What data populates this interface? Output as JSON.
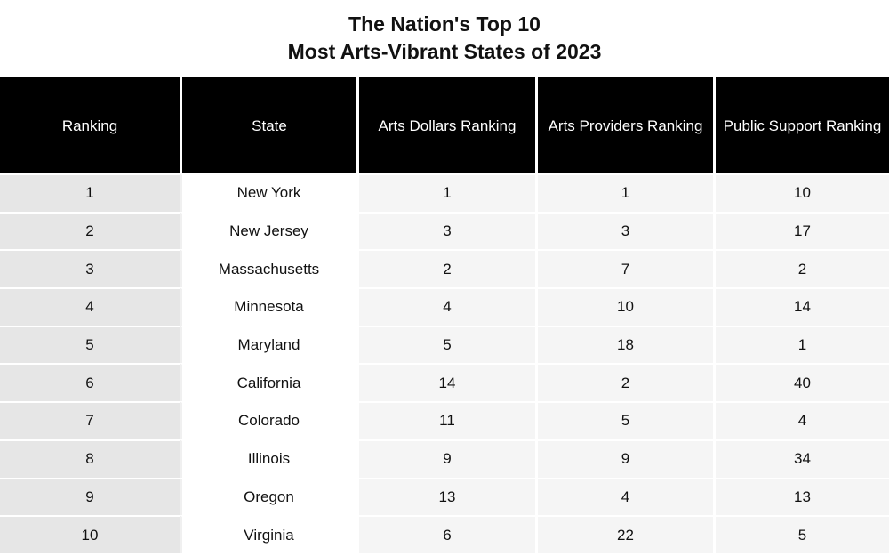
{
  "chart_data": {
    "type": "table",
    "title_line1": "The Nation's Top 10",
    "title_line2": "Most Arts-Vibrant States of 2023",
    "columns": [
      "Ranking",
      "State",
      "Arts Dollars Ranking",
      "Arts Providers Ranking",
      "Public Support Ranking"
    ],
    "rows": [
      [
        "1",
        "New York",
        "1",
        "1",
        "10"
      ],
      [
        "2",
        "New Jersey",
        "3",
        "3",
        "17"
      ],
      [
        "3",
        "Massachusetts",
        "2",
        "7",
        "2"
      ],
      [
        "4",
        "Minnesota",
        "4",
        "10",
        "14"
      ],
      [
        "5",
        "Maryland",
        "5",
        "18",
        "1"
      ],
      [
        "6",
        "California",
        "14",
        "2",
        "40"
      ],
      [
        "7",
        "Colorado",
        "11",
        "5",
        "4"
      ],
      [
        "8",
        "Illinois",
        "9",
        "9",
        "34"
      ],
      [
        "9",
        "Oregon",
        "13",
        "4",
        "13"
      ],
      [
        "10",
        "Virginia",
        "6",
        "22",
        "5"
      ]
    ],
    "colors": {
      "header_bg": "#000000",
      "header_text": "#ffffff",
      "ranking_column_bg": "#e6e6e6"
    }
  }
}
